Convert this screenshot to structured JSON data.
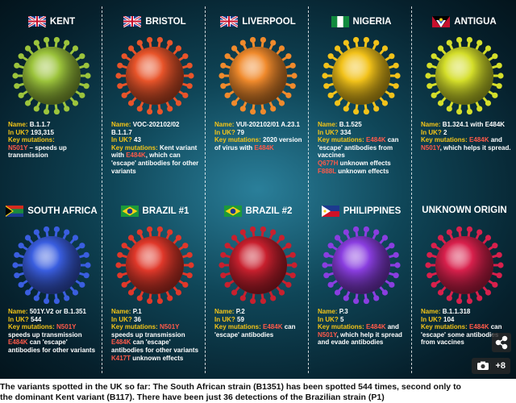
{
  "panels": [
    {
      "title": "KENT",
      "virus_color": "#9cc43c",
      "details": [
        [
          [
            "Name: ",
            "#f5c518"
          ],
          [
            "B.1.1.7",
            "#ffffff"
          ]
        ],
        [
          [
            "In UK? ",
            "#f5c518"
          ],
          [
            "193,315",
            "#ffffff"
          ]
        ],
        [
          [
            "Key mutations:",
            "#f5c518"
          ]
        ],
        [
          [
            "N501Y",
            "#ff5a4a"
          ],
          [
            " – speeds up transmission",
            "#ffffff"
          ]
        ]
      ]
    },
    {
      "title": "BRISTOL",
      "virus_color": "#e8542a",
      "details": [
        [
          [
            "Name: ",
            "#f5c518"
          ],
          [
            "VOC-202102/02 B.1.1.7",
            "#ffffff"
          ]
        ],
        [
          [
            "In UK? ",
            "#f5c518"
          ],
          [
            "43",
            "#ffffff"
          ]
        ],
        [
          [
            "Key mutations: ",
            "#f5c518"
          ],
          [
            "Kent variant with ",
            "#ffffff"
          ],
          [
            "E484K",
            "#ff5a4a"
          ],
          [
            ", which can 'escape' antibodies for other variants",
            "#ffffff"
          ]
        ]
      ]
    },
    {
      "title": "LIVERPOOL",
      "virus_color": "#f08a2c",
      "details": [
        [
          [
            "Name: ",
            "#f5c518"
          ],
          [
            "VUI-202102/01 A.23.1",
            "#ffffff"
          ]
        ],
        [
          [
            "In UK? ",
            "#f5c518"
          ],
          [
            "79",
            "#ffffff"
          ]
        ],
        [
          [
            "Key mutations: ",
            "#f5c518"
          ],
          [
            "2020 version of virus with ",
            "#ffffff"
          ],
          [
            "E484K",
            "#ff5a4a"
          ]
        ]
      ]
    },
    {
      "title": "NIGERIA",
      "virus_color": "#f2c21a",
      "details": [
        [
          [
            "Name: ",
            "#f5c518"
          ],
          [
            "B.1.525",
            "#ffffff"
          ]
        ],
        [
          [
            "In UK? ",
            "#f5c518"
          ],
          [
            "334",
            "#ffffff"
          ]
        ],
        [
          [
            "Key mutations: ",
            "#f5c518"
          ],
          [
            "E484K",
            "#ff5a4a"
          ],
          [
            " can 'escape' antibodies from vaccines",
            "#ffffff"
          ]
        ],
        [
          [
            "Q677H",
            "#ff5a4a"
          ],
          [
            " unknown effects",
            "#ffffff"
          ]
        ],
        [
          [
            "F888L",
            "#ff5a4a"
          ],
          [
            " unknown effects",
            "#ffffff"
          ]
        ]
      ]
    },
    {
      "title": "ANTIGUA",
      "virus_color": "#d4de2a",
      "details": [
        [
          [
            "Name: ",
            "#f5c518"
          ],
          [
            "B1.324.1 with E484K",
            "#ffffff"
          ]
        ],
        [
          [
            "In UK? ",
            "#f5c518"
          ],
          [
            "2",
            "#ffffff"
          ]
        ],
        [
          [
            "Key mutations: ",
            "#f5c518"
          ],
          [
            "E484K",
            "#ff5a4a"
          ],
          [
            " and ",
            "#ffffff"
          ],
          [
            "N501Y",
            "#ff5a4a"
          ],
          [
            ", which helps it spread.",
            "#ffffff"
          ]
        ]
      ]
    },
    {
      "title": "SOUTH AFRICA",
      "virus_color": "#3a5ee0",
      "details": [
        [
          [
            "Name: ",
            "#f5c518"
          ],
          [
            "501Y.V2 or B.1.351",
            "#ffffff"
          ]
        ],
        [
          [
            "In UK? ",
            "#f5c518"
          ],
          [
            "544",
            "#ffffff"
          ]
        ],
        [
          [
            "Key mutations: ",
            "#f5c518"
          ],
          [
            "N501Y",
            "#ff5a4a"
          ],
          [
            " speeds up transmission",
            "#ffffff"
          ]
        ],
        [
          [
            "E484K",
            "#ff5a4a"
          ],
          [
            " can 'escape' antibodies for other variants",
            "#ffffff"
          ]
        ]
      ]
    },
    {
      "title": "BRAZIL #1",
      "virus_color": "#e0382a",
      "details": [
        [
          [
            "Name: ",
            "#f5c518"
          ],
          [
            "P.1",
            "#ffffff"
          ]
        ],
        [
          [
            "In UK? ",
            "#f5c518"
          ],
          [
            "36",
            "#ffffff"
          ]
        ],
        [
          [
            "Key mutations: ",
            "#f5c518"
          ],
          [
            "N501Y",
            "#ff5a4a"
          ],
          [
            " speeds up transmission",
            "#ffffff"
          ]
        ],
        [
          [
            "E484K",
            "#ff5a4a"
          ],
          [
            " can 'escape' antibodies for other variants",
            "#ffffff"
          ]
        ],
        [
          [
            "K417T",
            "#ff5a4a"
          ],
          [
            " unknown effects",
            "#ffffff"
          ]
        ]
      ]
    },
    {
      "title": "BRAZIL #2",
      "virus_color": "#c8202e",
      "details": [
        [
          [
            "Name: ",
            "#f5c518"
          ],
          [
            "P.2",
            "#ffffff"
          ]
        ],
        [
          [
            "In UK? ",
            "#f5c518"
          ],
          [
            "59",
            "#ffffff"
          ]
        ],
        [
          [
            "Key mutations: ",
            "#f5c518"
          ],
          [
            "E484K",
            "#ff5a4a"
          ],
          [
            " can 'escape' antibodies",
            "#ffffff"
          ]
        ]
      ]
    },
    {
      "title": "PHILIPPINES",
      "virus_color": "#8a3ee0",
      "details": [
        [
          [
            "Name: ",
            "#f5c518"
          ],
          [
            "P.3",
            "#ffffff"
          ]
        ],
        [
          [
            "In UK? ",
            "#f5c518"
          ],
          [
            "5",
            "#ffffff"
          ]
        ],
        [
          [
            "Key mutations: ",
            "#f5c518"
          ],
          [
            "E484K",
            "#ff5a4a"
          ],
          [
            " and ",
            "#ffffff"
          ],
          [
            "N501Y",
            "#ff5a4a"
          ],
          [
            ", which help it spread and evade antibodies",
            "#ffffff"
          ]
        ]
      ]
    },
    {
      "title": "UNKNOWN ORIGIN",
      "virus_color": "#d8204c",
      "details": [
        [
          [
            "Name: ",
            "#f5c518"
          ],
          [
            "B.1.1.318",
            "#ffffff"
          ]
        ],
        [
          [
            "In UK? ",
            "#f5c518"
          ],
          [
            "104",
            "#ffffff"
          ]
        ],
        [
          [
            "Key mutations: ",
            "#f5c518"
          ],
          [
            "E484K",
            "#ff5a4a"
          ],
          [
            " can 'escape' some antibodies from vaccines",
            "#ffffff"
          ]
        ]
      ]
    }
  ],
  "caption": [
    "The variants spotted in the UK so far: The South African strain (B1351) has been spotted 544 times, second only to",
    "the dominant Kent variant (B117). There have been just 36 detections of the Brazilian strain (P1)"
  ],
  "badge": "+8"
}
